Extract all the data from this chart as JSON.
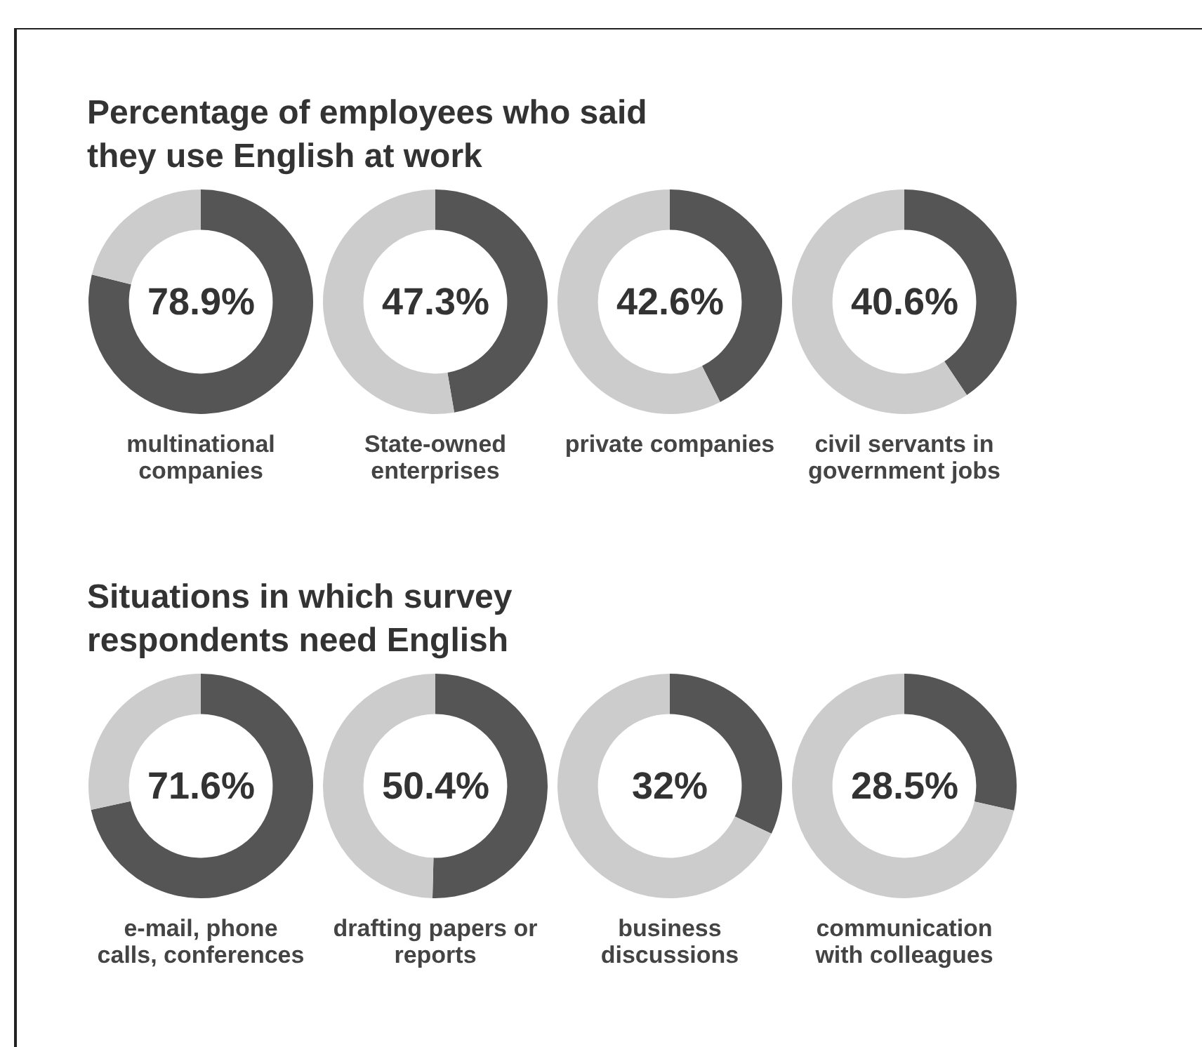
{
  "chart_data": [
    {
      "type": "donut",
      "title": "Percentage of employees who said they use English at work",
      "categories": [
        null,
        null
      ],
      "values": [
        78.9,
        21.1
      ],
      "colors": [
        "#555555",
        "#cccccc"
      ],
      "value_labels": [
        "78.9%",
        null
      ],
      "xlabel": "multinational companies"
    },
    {
      "type": "donut",
      "categories": [
        null,
        null
      ],
      "values": [
        47.3,
        52.7
      ],
      "colors": [
        "#555555",
        "#cccccc"
      ],
      "value_labels": [
        "47.3%",
        null
      ],
      "xlabel": "State-owned enterprises"
    },
    {
      "type": "donut",
      "categories": [
        null,
        null
      ],
      "values": [
        42.6,
        57.4
      ],
      "colors": [
        "#555555",
        "#cccccc"
      ],
      "value_labels": [
        "42.6%",
        null
      ],
      "xlabel": "private companies"
    },
    {
      "type": "donut",
      "categories": [
        null,
        null
      ],
      "values": [
        40.6,
        59.4
      ],
      "colors": [
        "#555555",
        "#cccccc"
      ],
      "value_labels": [
        "40.6%",
        null
      ],
      "xlabel": "civil servants in government jobs"
    },
    {
      "type": "donut",
      "title": "Situations in which survey respondents need English",
      "categories": [
        null,
        null
      ],
      "values": [
        71.6,
        28.4
      ],
      "colors": [
        "#555555",
        "#cccccc"
      ],
      "value_labels": [
        "71.6%",
        null
      ],
      "xlabel": "e-mail, phone calls, conferences"
    },
    {
      "type": "donut",
      "categories": [
        null,
        null
      ],
      "values": [
        50.4,
        49.6
      ],
      "colors": [
        "#555555",
        "#cccccc"
      ],
      "value_labels": [
        "50.4%",
        null
      ],
      "xlabel": "drafting papers or reports"
    },
    {
      "type": "donut",
      "categories": [
        null,
        null
      ],
      "values": [
        32,
        68
      ],
      "colors": [
        "#555555",
        "#cccccc"
      ],
      "value_labels": [
        "32%",
        null
      ],
      "xlabel": "business discussions"
    },
    {
      "type": "donut",
      "categories": [
        null,
        null
      ],
      "values": [
        28.5,
        71.5
      ],
      "colors": [
        "#555555",
        "#cccccc"
      ],
      "value_labels": [
        "28.5%",
        null
      ],
      "xlabel": "communication with colleagues"
    }
  ]
}
